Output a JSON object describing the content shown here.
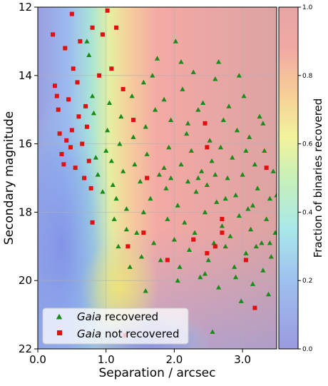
{
  "chart_data": {
    "type": "scatter",
    "xlabel": "Separation / arcsec",
    "ylabel": "Secondary magnitude",
    "xlim": [
      0.0,
      3.5
    ],
    "ylim": [
      22,
      12
    ],
    "y_inverted": true,
    "x_ticks": [
      "0.0",
      "1.0",
      "2.0",
      "3.0"
    ],
    "y_ticks": [
      "12",
      "14",
      "16",
      "18",
      "20",
      "22"
    ],
    "grid": true,
    "background": "heatmap of fraction of binaries recovered (blue at small separation and faint magnitude, red at large separation)",
    "colorbar": {
      "label": "Fraction of binaries recovered",
      "range": [
        0.0,
        1.0
      ],
      "ticks": [
        "0.0",
        "0.2",
        "0.4",
        "0.6",
        "0.8",
        "1.0"
      ],
      "colormap": "jet"
    },
    "legend": {
      "placement": "lower-left",
      "entries": [
        {
          "label_italic": "Gaia",
          "label_rest": " recovered",
          "marker": "triangle",
          "color": "#1a8a1a"
        },
        {
          "label_italic": "Gaia",
          "label_rest": " not recovered",
          "marker": "square",
          "color": "#e01010"
        }
      ]
    },
    "series": [
      {
        "name": "Gaia recovered",
        "marker": "triangle",
        "color": "#1a8a1a",
        "points": [
          [
            0.72,
            13.0
          ],
          [
            0.75,
            13.4
          ],
          [
            0.8,
            14.6
          ],
          [
            0.82,
            15.1
          ],
          [
            0.85,
            16.4
          ],
          [
            0.88,
            16.9
          ],
          [
            0.95,
            17.4
          ],
          [
            1.0,
            16.2
          ],
          [
            1.02,
            15.6
          ],
          [
            1.05,
            14.8
          ],
          [
            1.08,
            16.5
          ],
          [
            1.1,
            17.2
          ],
          [
            1.12,
            18.2
          ],
          [
            1.15,
            17.6
          ],
          [
            1.18,
            19.0
          ],
          [
            1.2,
            16.0
          ],
          [
            1.22,
            15.2
          ],
          [
            1.25,
            16.8
          ],
          [
            1.3,
            17.9
          ],
          [
            1.35,
            19.6
          ],
          [
            1.38,
            14.6
          ],
          [
            1.4,
            15.8
          ],
          [
            1.42,
            16.6
          ],
          [
            1.45,
            18.6
          ],
          [
            1.5,
            17.1
          ],
          [
            1.52,
            19.3
          ],
          [
            1.55,
            14.2
          ],
          [
            1.58,
            15.5
          ],
          [
            1.6,
            16.3
          ],
          [
            1.65,
            17.6
          ],
          [
            1.7,
            18.9
          ],
          [
            1.72,
            15.0
          ],
          [
            1.75,
            13.5
          ],
          [
            1.78,
            16.9
          ],
          [
            1.8,
            19.4
          ],
          [
            1.85,
            14.7
          ],
          [
            1.88,
            17.3
          ],
          [
            1.9,
            18.2
          ],
          [
            1.92,
            16.1
          ],
          [
            1.95,
            15.3
          ],
          [
            2.0,
            18.8
          ],
          [
            2.02,
            13.0
          ],
          [
            2.05,
            17.8
          ],
          [
            2.08,
            19.6
          ],
          [
            2.1,
            16.6
          ],
          [
            2.12,
            14.4
          ],
          [
            2.15,
            18.3
          ],
          [
            2.18,
            15.7
          ],
          [
            2.2,
            17.1
          ],
          [
            2.22,
            19.1
          ],
          [
            2.25,
            16.2
          ],
          [
            2.28,
            13.9
          ],
          [
            2.3,
            18.6
          ],
          [
            2.32,
            17.4
          ],
          [
            2.35,
            15.0
          ],
          [
            2.38,
            19.9
          ],
          [
            2.4,
            16.8
          ],
          [
            2.42,
            14.8
          ],
          [
            2.45,
            18.0
          ],
          [
            2.48,
            17.2
          ],
          [
            2.5,
            19.4
          ],
          [
            2.52,
            15.9
          ],
          [
            2.55,
            16.5
          ],
          [
            2.58,
            18.9
          ],
          [
            2.6,
            14.1
          ],
          [
            2.62,
            17.7
          ],
          [
            2.65,
            20.2
          ],
          [
            2.68,
            16.1
          ],
          [
            2.7,
            18.4
          ],
          [
            2.72,
            15.3
          ],
          [
            2.75,
            19.0
          ],
          [
            2.78,
            17.0
          ],
          [
            2.8,
            14.9
          ],
          [
            2.82,
            18.7
          ],
          [
            2.85,
            16.4
          ],
          [
            2.88,
            19.6
          ],
          [
            2.9,
            17.5
          ],
          [
            2.92,
            15.6
          ],
          [
            2.95,
            18.1
          ],
          [
            2.98,
            20.6
          ],
          [
            3.0,
            16.9
          ],
          [
            3.02,
            14.6
          ],
          [
            3.05,
            19.2
          ],
          [
            3.08,
            17.9
          ],
          [
            3.1,
            15.8
          ],
          [
            3.12,
            18.5
          ],
          [
            3.15,
            20.1
          ],
          [
            3.18,
            16.6
          ],
          [
            3.2,
            19.0
          ],
          [
            3.22,
            17.3
          ],
          [
            3.25,
            15.2
          ],
          [
            3.28,
            18.9
          ],
          [
            3.3,
            19.7
          ],
          [
            3.32,
            16.2
          ],
          [
            3.35,
            18.2
          ],
          [
            3.38,
            20.4
          ],
          [
            3.4,
            17.6
          ],
          [
            3.42,
            19.3
          ],
          [
            3.45,
            16.8
          ],
          [
            3.48,
            18.6
          ],
          [
            3.5,
            17.5
          ],
          [
            2.56,
            21.5
          ],
          [
            1.58,
            20.3
          ],
          [
            2.05,
            20.0
          ],
          [
            1.3,
            18.5
          ],
          [
            1.55,
            18.0
          ],
          [
            1.95,
            17.0
          ],
          [
            2.35,
            17.0
          ],
          [
            2.75,
            17.6
          ],
          [
            3.15,
            17.8
          ],
          [
            2.9,
            19.9
          ],
          [
            2.45,
            19.8
          ],
          [
            3.05,
            16.2
          ],
          [
            2.2,
            15.4
          ],
          [
            1.68,
            14.0
          ],
          [
            2.95,
            14.0
          ],
          [
            3.3,
            15.4
          ],
          [
            2.1,
            13.6
          ],
          [
            2.65,
            13.6
          ],
          [
            1.85,
            16.7
          ],
          [
            2.6,
            16.9
          ],
          [
            3.4,
            18.9
          ]
        ]
      },
      {
        "name": "Gaia not recovered",
        "marker": "square",
        "color": "#e01010",
        "points": [
          [
            0.22,
            12.8
          ],
          [
            0.25,
            14.3
          ],
          [
            0.28,
            14.6
          ],
          [
            0.3,
            15.0
          ],
          [
            0.32,
            15.7
          ],
          [
            0.35,
            16.3
          ],
          [
            0.38,
            16.6
          ],
          [
            0.4,
            13.2
          ],
          [
            0.42,
            15.9
          ],
          [
            0.45,
            14.7
          ],
          [
            0.48,
            16.1
          ],
          [
            0.5,
            15.6
          ],
          [
            0.52,
            13.8
          ],
          [
            0.55,
            16.7
          ],
          [
            0.58,
            14.2
          ],
          [
            0.6,
            15.2
          ],
          [
            0.62,
            13.0
          ],
          [
            0.65,
            16.0
          ],
          [
            0.68,
            17.0
          ],
          [
            0.7,
            14.9
          ],
          [
            0.72,
            15.5
          ],
          [
            0.75,
            16.5
          ],
          [
            0.78,
            17.3
          ],
          [
            0.8,
            18.3
          ],
          [
            0.5,
            12.2
          ],
          [
            1.02,
            12.1
          ],
          [
            1.15,
            12.6
          ],
          [
            0.95,
            12.8
          ],
          [
            1.08,
            13.8
          ],
          [
            1.25,
            14.4
          ],
          [
            1.6,
            17.0
          ],
          [
            1.32,
            19.0
          ],
          [
            1.55,
            18.6
          ],
          [
            1.9,
            19.4
          ],
          [
            2.28,
            18.8
          ],
          [
            2.48,
            19.2
          ],
          [
            2.7,
            18.2
          ],
          [
            3.05,
            19.4
          ],
          [
            3.18,
            20.8
          ],
          [
            1.28,
            21.6
          ],
          [
            0.8,
            12.6
          ],
          [
            0.9,
            14.0
          ],
          [
            1.4,
            15.3
          ],
          [
            2.48,
            16.1
          ],
          [
            2.45,
            15.4
          ],
          [
            3.35,
            16.7
          ],
          [
            2.7,
            18.6
          ],
          [
            2.6,
            19.0
          ]
        ]
      }
    ]
  }
}
